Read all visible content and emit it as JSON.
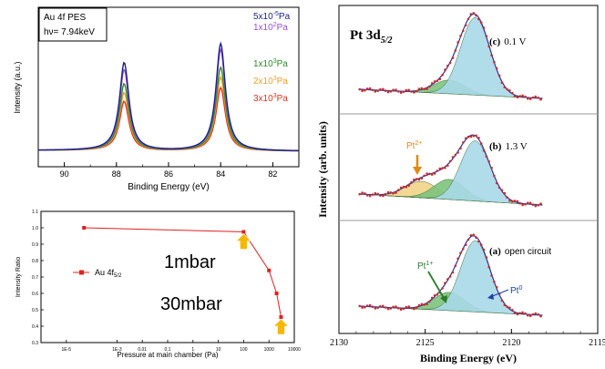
{
  "chart_data": [
    {
      "type": "line",
      "title": "",
      "annotation_box": [
        "Au 4f PES",
        "hν= 7.94keV"
      ],
      "xlabel": "Binding Energy (eV)",
      "ylabel": "Intensity (a.u.)",
      "xlim": [
        91,
        81
      ],
      "x_ticks": [
        "90",
        "88",
        "86",
        "84",
        "82"
      ],
      "grid": false,
      "legend": "top-right",
      "series": [
        {
          "name": "5x10⁻⁵Pa",
          "color": "#1a1f8a",
          "peaks": [
            [
              87.7,
              1.0
            ],
            [
              84.0,
              1.22
            ]
          ]
        },
        {
          "name": "1x10²Pa",
          "color": "#9b4fd0",
          "peaks": [
            [
              87.7,
              0.92
            ],
            [
              84.0,
              1.15
            ]
          ]
        },
        {
          "name": "1x10³Pa",
          "color": "#2e8b2e",
          "peaks": [
            [
              87.7,
              0.76
            ],
            [
              84.0,
              0.95
            ]
          ]
        },
        {
          "name": "2x10³Pa",
          "color": "#f0a020",
          "peaks": [
            [
              87.7,
              0.66
            ],
            [
              84.0,
              0.84
            ]
          ]
        },
        {
          "name": "3x10³Pa",
          "color": "#e03020",
          "peaks": [
            [
              87.7,
              0.56
            ],
            [
              84.0,
              0.72
            ]
          ]
        }
      ]
    },
    {
      "type": "line",
      "title": "",
      "xlabel": "Pressure at main chamber (Pa)",
      "ylabel": "Intensity Ratio",
      "xscale": "log",
      "xlim": [
        1e-06,
        10000
      ],
      "ylim": [
        0.3,
        1.1
      ],
      "x_ticks": [
        "1E-5",
        "1E-3",
        "0.01",
        "0.1",
        "1",
        "10",
        "100",
        "1000",
        "10000"
      ],
      "y_ticks": [
        "0.3",
        "0.4",
        "0.5",
        "0.6",
        "0.7",
        "0.8",
        "0.9",
        "1.0",
        "1.1"
      ],
      "legend": "center-left",
      "series": [
        {
          "name": "Au 4f",
          "subscript": "5/2",
          "color": "#e02020",
          "x": [
            5e-05,
            100,
            1000,
            2000,
            3000
          ],
          "y": [
            1.0,
            0.975,
            0.74,
            0.6,
            0.455
          ]
        }
      ],
      "annotations": [
        {
          "text": "1mbar",
          "x": 100
        },
        {
          "text": "30mbar",
          "x": 3000
        }
      ]
    },
    {
      "type": "line",
      "title": "Pt 3d",
      "title_subscript": "5/2",
      "xlabel": "Binding Energy (eV)",
      "ylabel": "Intensity (arb. units)",
      "xlim": [
        2130,
        2115
      ],
      "x_ticks": [
        "2130",
        "2125",
        "2120",
        "2115"
      ],
      "panels": [
        {
          "label": "(c)",
          "condition": "0.1 V",
          "components": [
            {
              "name": "Pt⁰",
              "center": 2122.1,
              "color": "#a8d8e8"
            },
            {
              "name": "Pt¹⁺",
              "center": 2123.6,
              "color": "#7cc47c"
            }
          ]
        },
        {
          "label": "(b)",
          "condition": "1.3 V",
          "components": [
            {
              "name": "Pt⁰",
              "center": 2122.1,
              "color": "#a8d8e8"
            },
            {
              "name": "Pt¹⁺",
              "center": 2123.6,
              "color": "#7cc47c"
            },
            {
              "name": "Pt²⁺",
              "center": 2125.2,
              "color": "#f2d488"
            }
          ]
        },
        {
          "label": "(a)",
          "condition": "open circuit",
          "components": [
            {
              "name": "Pt⁰",
              "center": 2122.1,
              "color": "#a8d8e8"
            },
            {
              "name": "Pt¹⁺",
              "center": 2123.6,
              "color": "#7cc47c"
            }
          ]
        }
      ],
      "labels": {
        "pt2": "Pt",
        "pt2_sup": "2+",
        "pt1": "Pt",
        "pt1_sup": "1+",
        "pt0": "Pt",
        "pt0_sup": "0"
      },
      "colors": {
        "data_points": "#c03030",
        "fit": "#3030a0",
        "envelope": "#c03030",
        "arrow": "#e08a10"
      }
    }
  ]
}
